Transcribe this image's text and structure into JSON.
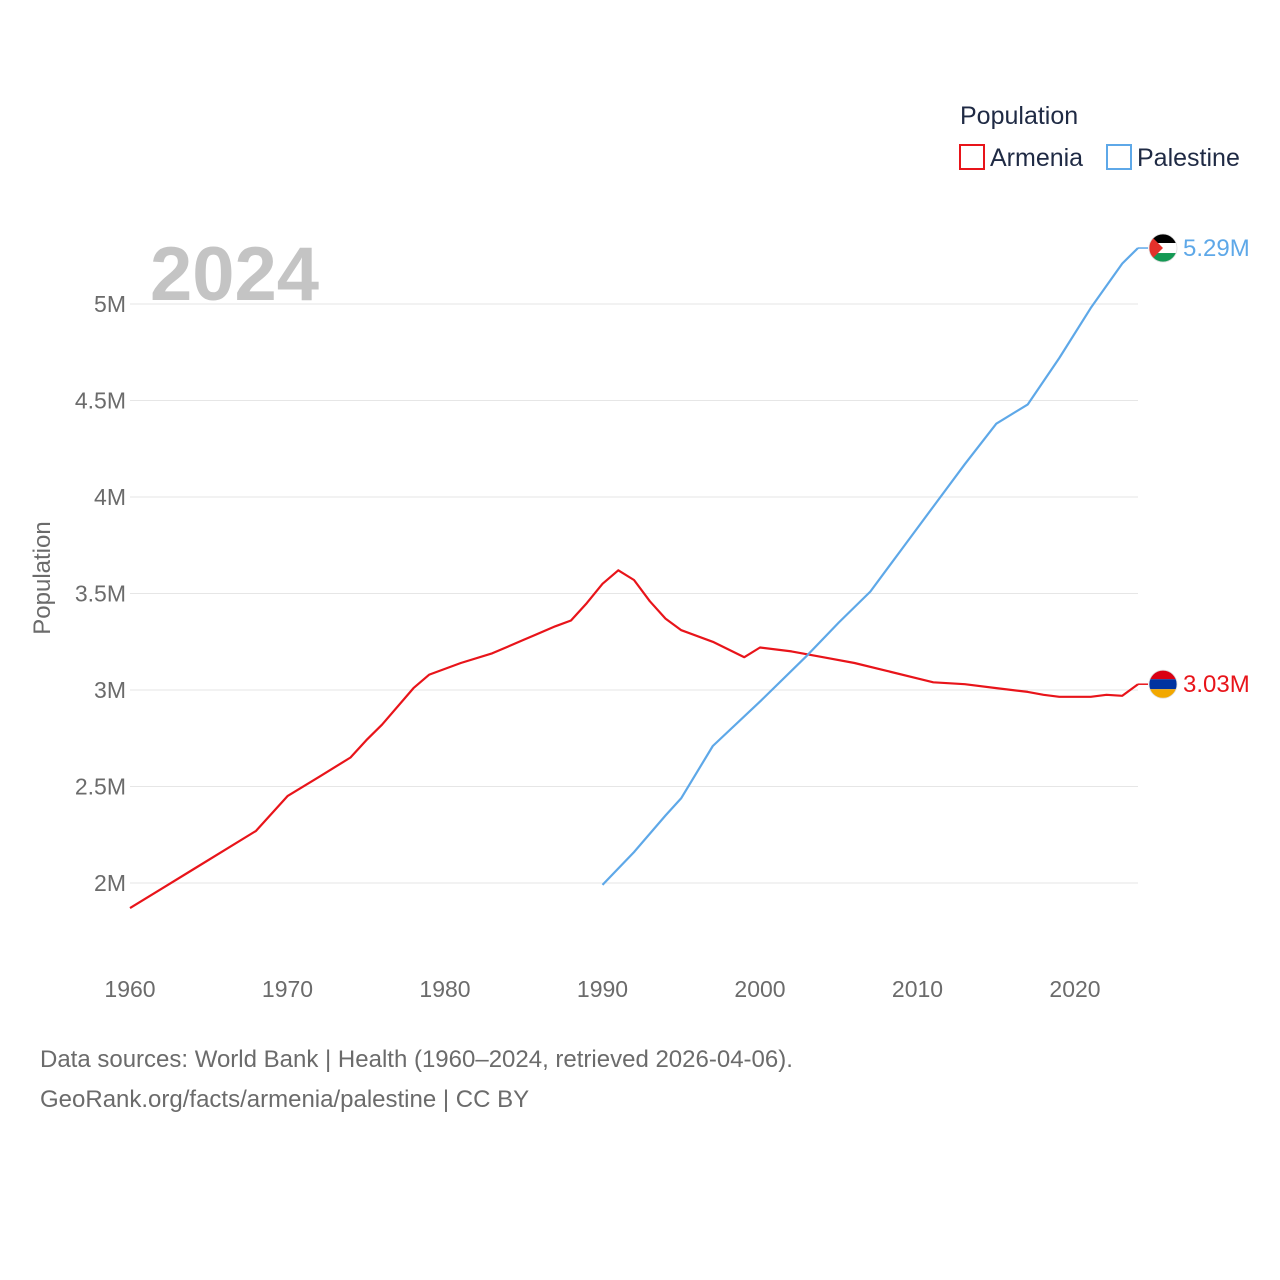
{
  "chart_data": {
    "type": "line",
    "legend_title": "Population",
    "legend_position": "top-right",
    "ylabel": "Population",
    "xlabel": "",
    "year_label": "2024",
    "xlim": [
      1960,
      2024
    ],
    "ylim": [
      1650000,
      5330000
    ],
    "x_ticks": [
      {
        "value": 1960,
        "label": "1960"
      },
      {
        "value": 1970,
        "label": "1970"
      },
      {
        "value": 1980,
        "label": "1980"
      },
      {
        "value": 1990,
        "label": "1990"
      },
      {
        "value": 2000,
        "label": "2000"
      },
      {
        "value": 2010,
        "label": "2010"
      },
      {
        "value": 2020,
        "label": "2020"
      }
    ],
    "y_ticks": [
      {
        "value": 2000000,
        "label": "2M"
      },
      {
        "value": 2500000,
        "label": "2.5M"
      },
      {
        "value": 3000000,
        "label": "3M"
      },
      {
        "value": 3500000,
        "label": "3.5M"
      },
      {
        "value": 4000000,
        "label": "4M"
      },
      {
        "value": 4500000,
        "label": "4.5M"
      },
      {
        "value": 5000000,
        "label": "5M"
      }
    ],
    "series": [
      {
        "name": "Armenia",
        "color": "#e8141a",
        "end_label": "3.03M",
        "flag_colors": [
          "#d90012",
          "#0033a0",
          "#f2a800"
        ],
        "points": [
          [
            1960,
            1870000
          ],
          [
            1962,
            1970000
          ],
          [
            1964,
            2070000
          ],
          [
            1966,
            2170000
          ],
          [
            1968,
            2270000
          ],
          [
            1970,
            2450000
          ],
          [
            1972,
            2550000
          ],
          [
            1974,
            2650000
          ],
          [
            1975,
            2740000
          ],
          [
            1976,
            2820000
          ],
          [
            1978,
            3010000
          ],
          [
            1979,
            3080000
          ],
          [
            1981,
            3140000
          ],
          [
            1983,
            3190000
          ],
          [
            1985,
            3260000
          ],
          [
            1987,
            3330000
          ],
          [
            1988,
            3360000
          ],
          [
            1989,
            3450000
          ],
          [
            1990,
            3550000
          ],
          [
            1991,
            3620000
          ],
          [
            1992,
            3570000
          ],
          [
            1993,
            3460000
          ],
          [
            1994,
            3370000
          ],
          [
            1995,
            3310000
          ],
          [
            1997,
            3250000
          ],
          [
            1999,
            3170000
          ],
          [
            2000,
            3220000
          ],
          [
            2002,
            3200000
          ],
          [
            2004,
            3170000
          ],
          [
            2006,
            3140000
          ],
          [
            2008,
            3100000
          ],
          [
            2010,
            3060000
          ],
          [
            2011,
            3040000
          ],
          [
            2013,
            3030000
          ],
          [
            2015,
            3010000
          ],
          [
            2017,
            2990000
          ],
          [
            2018,
            2975000
          ],
          [
            2019,
            2965000
          ],
          [
            2021,
            2965000
          ],
          [
            2022,
            2975000
          ],
          [
            2023,
            2970000
          ],
          [
            2024,
            3030000
          ]
        ]
      },
      {
        "name": "Palestine",
        "color": "#5ea8e8",
        "end_label": "5.29M",
        "flag_colors": [
          "#000000",
          "#ffffff",
          "#149954",
          "#e4312b"
        ],
        "points": [
          [
            1990,
            1990000
          ],
          [
            1992,
            2160000
          ],
          [
            1994,
            2350000
          ],
          [
            1995,
            2440000
          ],
          [
            1997,
            2710000
          ],
          [
            2000,
            2940000
          ],
          [
            2003,
            3180000
          ],
          [
            2005,
            3350000
          ],
          [
            2007,
            3510000
          ],
          [
            2009,
            3730000
          ],
          [
            2011,
            3950000
          ],
          [
            2013,
            4170000
          ],
          [
            2015,
            4380000
          ],
          [
            2017,
            4480000
          ],
          [
            2019,
            4720000
          ],
          [
            2021,
            4980000
          ],
          [
            2023,
            5210000
          ],
          [
            2024,
            5290000
          ]
        ]
      }
    ]
  },
  "footer": {
    "line1": "Data sources: World Bank | Health (1960–2024, retrieved 2026-04-06).",
    "line2": "GeoRank.org/facts/armenia/palestine | CC BY"
  }
}
